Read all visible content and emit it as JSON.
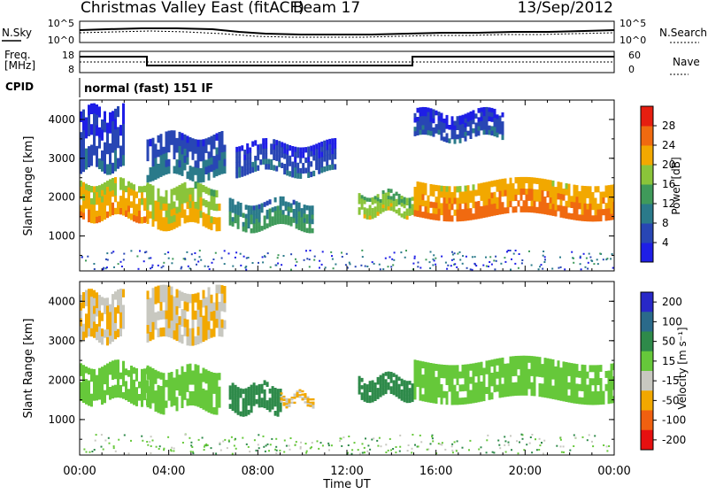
{
  "header": {
    "title": "Christmas Valley East (fitACF)",
    "beam": "Beam 17",
    "date": "13/Sep/2012"
  },
  "noise_panel": {
    "left_label": "N.Sky",
    "right_label": "N.Search",
    "left_ticks": [
      "10^5",
      "10^0"
    ],
    "right_ticks": [
      "10^5",
      "10^0"
    ]
  },
  "freq_panel": {
    "left_label_1": "Freq.",
    "left_label_2": "[MHz]",
    "right_label": "Nave",
    "left_ticks": [
      "18",
      "8"
    ],
    "right_ticks": [
      "60",
      "0"
    ]
  },
  "cpid": {
    "label": "CPID",
    "value": "normal (fast) 151 IF"
  },
  "chart_data": [
    {
      "type": "heatmap",
      "name": "power",
      "ylabel": "Slant Range [km]",
      "ylim": [
        100,
        4500
      ],
      "yticks": [
        1000,
        2000,
        3000,
        4000
      ],
      "ytick_labels": [
        "1000",
        "2000",
        "3000",
        "4000"
      ],
      "colorbar_label": "Power [dB]",
      "colorbar_ticks": [
        "4",
        "8",
        "12",
        "16",
        "20",
        "24",
        "28"
      ],
      "colorbar_colors": [
        "#1e1ee6",
        "#2846b4",
        "#2a7a8a",
        "#3f9a5a",
        "#8ac43a",
        "#f2a800",
        "#f06a10",
        "#e61e10"
      ],
      "bands": [
        {
          "t0": 0.0,
          "t1": 3.0,
          "r0": 1450,
          "r1": 2400,
          "value": 22
        },
        {
          "t0": 0.0,
          "t1": 2.0,
          "r0": 2700,
          "r1": 4300,
          "value": 6
        },
        {
          "t0": 3.0,
          "t1": 6.3,
          "r0": 1250,
          "r1": 2300,
          "value": 20
        },
        {
          "t0": 3.0,
          "t1": 6.5,
          "r0": 2500,
          "r1": 3600,
          "value": 8
        },
        {
          "t0": 6.7,
          "t1": 10.5,
          "r0": 1200,
          "r1": 1900,
          "value": 12
        },
        {
          "t0": 7.0,
          "t1": 11.5,
          "r0": 2600,
          "r1": 3400,
          "value": 6
        },
        {
          "t0": 12.5,
          "t1": 15.0,
          "r0": 1550,
          "r1": 2100,
          "value": 18
        },
        {
          "t0": 15.0,
          "t1": 24.0,
          "r0": 1500,
          "r1": 2400,
          "value": 24
        },
        {
          "t0": 15.0,
          "t1": 19.0,
          "r0": 3500,
          "r1": 4200,
          "value": 6
        }
      ]
    },
    {
      "type": "heatmap",
      "name": "velocity",
      "xlabel": "Time UT",
      "ylabel": "Slant Range [km]",
      "ylim": [
        100,
        4500
      ],
      "yticks": [
        1000,
        2000,
        3000,
        4000
      ],
      "ytick_labels": [
        "1000",
        "2000",
        "3000",
        "4000"
      ],
      "xlim": [
        0,
        24
      ],
      "xticks": [
        0,
        4,
        8,
        12,
        16,
        20,
        24
      ],
      "xtick_labels": [
        "00:00",
        "04:00",
        "08:00",
        "12:00",
        "16:00",
        "20:00",
        "00:00"
      ],
      "colorbar_label": "Velocity [m s⁻¹]",
      "colorbar_ticks": [
        "200",
        "100",
        "50",
        "15",
        "-15",
        "-50",
        "-100",
        "-200"
      ],
      "colorbar_colors": [
        "#2828c8",
        "#2a6a8a",
        "#2e8a4a",
        "#66c83a",
        "#c8c8c0",
        "#f2a800",
        "#f06010",
        "#e61010"
      ],
      "bands": [
        {
          "t0": 0.0,
          "t1": 3.0,
          "r0": 1450,
          "r1": 2400,
          "value": 0
        },
        {
          "t0": 0.0,
          "t1": 2.0,
          "r0": 3000,
          "r1": 4200,
          "value": -50
        },
        {
          "t0": 3.0,
          "t1": 6.3,
          "r0": 1250,
          "r1": 2300,
          "value": 0
        },
        {
          "t0": 3.0,
          "t1": 6.5,
          "r0": 3000,
          "r1": 4300,
          "value": -50
        },
        {
          "t0": 6.7,
          "t1": 9.0,
          "r0": 1200,
          "r1": 1900,
          "value": 30
        },
        {
          "t0": 9.0,
          "t1": 10.5,
          "r0": 1400,
          "r1": 1650,
          "value": -50
        },
        {
          "t0": 12.5,
          "t1": 15.0,
          "r0": 1550,
          "r1": 2100,
          "value": 30
        },
        {
          "t0": 15.0,
          "t1": 24.0,
          "r0": 1500,
          "r1": 2500,
          "value": 0
        }
      ]
    }
  ]
}
